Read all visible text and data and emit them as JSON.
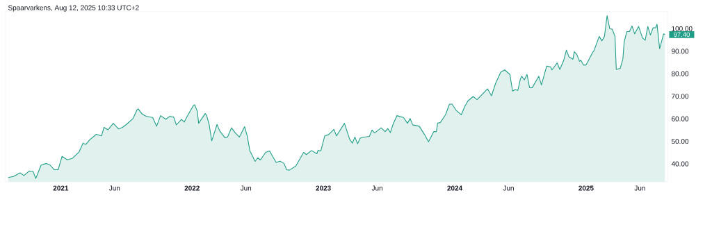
{
  "chart_data": {
    "type": "area",
    "title": "Spaarvarkens, Aug 12, 2025 10:33 UTC+2",
    "x": [
      2020.6,
      2020.64,
      2020.69,
      2020.72,
      2020.76,
      2020.79,
      2020.81,
      2020.85,
      2020.89,
      2020.92,
      2020.95,
      2020.98,
      2021.01,
      2021.05,
      2021.09,
      2021.14,
      2021.17,
      2021.19,
      2021.22,
      2021.27,
      2021.31,
      2021.33,
      2021.36,
      2021.4,
      2021.44,
      2021.47,
      2021.5,
      2021.55,
      2021.58,
      2021.59,
      2021.62,
      2021.65,
      2021.7,
      2021.73,
      2021.76,
      2021.8,
      2021.83,
      2021.86,
      2021.88,
      2021.92,
      2021.94,
      2021.96,
      2022.01,
      2022.02,
      2022.04,
      2022.05,
      2022.1,
      2022.11,
      2022.13,
      2022.15,
      2022.19,
      2022.21,
      2022.25,
      2022.27,
      2022.3,
      2022.33,
      2022.36,
      2022.4,
      2022.42,
      2022.44,
      2022.48,
      2022.5,
      2022.52,
      2022.56,
      2022.59,
      2022.64,
      2022.67,
      2022.7,
      2022.72,
      2022.74,
      2022.79,
      2022.81,
      2022.85,
      2022.87,
      2022.91,
      2022.95,
      2022.96,
      2022.98,
      2023.01,
      2023.04,
      2023.08,
      2023.1,
      2023.16,
      2023.2,
      2023.22,
      2023.24,
      2023.26,
      2023.28,
      2023.3,
      2023.35,
      2023.37,
      2023.39,
      2023.44,
      2023.47,
      2023.49,
      2023.51,
      2023.53,
      2023.56,
      2023.61,
      2023.64,
      2023.66,
      2023.68,
      2023.73,
      2023.77,
      2023.8,
      2023.84,
      2023.86,
      2023.87,
      2023.89,
      2023.93,
      2023.96,
      2023.98,
      2024.01,
      2024.05,
      2024.07,
      2024.08,
      2024.1,
      2024.14,
      2024.17,
      2024.25,
      2024.28,
      2024.31,
      2024.35,
      2024.38,
      2024.42,
      2024.44,
      2024.46,
      2024.48,
      2024.5,
      2024.51,
      2024.53,
      2024.55,
      2024.57,
      2024.59,
      2024.64,
      2024.66,
      2024.7,
      2024.73,
      2024.74,
      2024.78,
      2024.8,
      2024.83,
      2024.85,
      2024.87,
      2024.9,
      2024.91,
      2024.93,
      2024.95,
      2024.96,
      2024.98,
      2025.0,
      2025.05,
      2025.06,
      2025.1,
      2025.12,
      2025.14,
      2025.16,
      2025.18,
      2025.2,
      2025.22,
      2025.23,
      2025.26,
      2025.28,
      2025.29,
      2025.31,
      2025.33,
      2025.35,
      2025.37,
      2025.4,
      2025.43,
      2025.45,
      2025.47,
      2025.49,
      2025.51,
      2025.53,
      2025.54,
      2025.56,
      2025.59,
      2025.6
    ],
    "series": [
      {
        "color": "#1f9e87",
        "values": [
          33.9,
          34.4,
          36.0,
          34.8,
          36.8,
          36.6,
          33.5,
          39.4,
          40.2,
          39.4,
          37.4,
          37.4,
          43.3,
          41.8,
          42.5,
          45.3,
          49.2,
          48.6,
          50.6,
          53.1,
          52.4,
          56.2,
          55.1,
          58.0,
          55.5,
          56.2,
          57.5,
          60.1,
          63.9,
          64.4,
          62.1,
          61.1,
          60.6,
          56.7,
          61.4,
          59.8,
          61.1,
          60.8,
          57.3,
          59.8,
          58.5,
          60.8,
          65.9,
          66.2,
          63.4,
          58.0,
          62.3,
          61.6,
          57.5,
          50.2,
          57.5,
          54.7,
          51.6,
          51.9,
          56.0,
          53.7,
          51.9,
          56.5,
          52.4,
          45.8,
          41.1,
          42.7,
          41.7,
          45.1,
          45.7,
          40.6,
          41.2,
          40.2,
          37.4,
          37.2,
          39.0,
          41.1,
          45.1,
          44.1,
          45.9,
          44.5,
          46.0,
          45.7,
          52.4,
          53.0,
          55.3,
          52.4,
          58.0,
          50.9,
          49.2,
          51.9,
          48.9,
          51.4,
          51.8,
          52.2,
          55.0,
          53.7,
          56.0,
          54.3,
          55.7,
          53.9,
          57.5,
          61.4,
          60.6,
          58.0,
          60.1,
          57.3,
          56.7,
          53.0,
          49.8,
          54.3,
          54.3,
          58.1,
          58.3,
          61.8,
          66.5,
          66.5,
          63.8,
          61.8,
          64.6,
          65.9,
          67.9,
          69.9,
          68.5,
          73.3,
          70.2,
          75.6,
          80.7,
          81.7,
          79.7,
          72.3,
          73.0,
          72.6,
          77.7,
          78.9,
          77.3,
          79.7,
          73.8,
          73.8,
          78.9,
          75.0,
          83.4,
          83.1,
          81.7,
          84.8,
          81.9,
          86.0,
          90.5,
          87.5,
          86.5,
          89.8,
          88.5,
          85.5,
          86.0,
          83.9,
          83.9,
          89.5,
          90.2,
          96.6,
          94.6,
          96.6,
          105.8,
          100.0,
          99.7,
          96.6,
          81.9,
          82.4,
          86.5,
          94.1,
          98.7,
          98.7,
          101.2,
          97.7,
          101.0,
          95.9,
          94.9,
          101.0,
          97.2,
          100.4,
          100.4,
          102.0,
          91.1,
          97.7,
          97.4
        ]
      }
    ],
    "xlim": [
      2020.58,
      2025.62
    ],
    "ylim": [
      32,
      107.5
    ],
    "xticks": [
      {
        "value": 2021,
        "label": "2021"
      },
      {
        "value": 2021.41,
        "label": "Jun"
      },
      {
        "value": 2022,
        "label": "2022"
      },
      {
        "value": 2022.41,
        "label": "Jun"
      },
      {
        "value": 2023,
        "label": "2023"
      },
      {
        "value": 2023.41,
        "label": "Jun"
      },
      {
        "value": 2024,
        "label": "2024"
      },
      {
        "value": 2024.41,
        "label": "Jun"
      },
      {
        "value": 2025,
        "label": "2025"
      },
      {
        "value": 2025.41,
        "label": "Jun"
      }
    ],
    "yticks": [
      {
        "value": 40,
        "label": "40.00"
      },
      {
        "value": 50,
        "label": "50.00"
      },
      {
        "value": 60,
        "label": "60.00"
      },
      {
        "value": 70,
        "label": "70.00"
      },
      {
        "value": 80,
        "label": "80.00"
      },
      {
        "value": 90,
        "label": "90.00"
      },
      {
        "value": 100,
        "label": "100.00"
      }
    ],
    "annotations": [
      {
        "text": "97.40",
        "x": 2025.6,
        "y": 97.4
      }
    ]
  }
}
